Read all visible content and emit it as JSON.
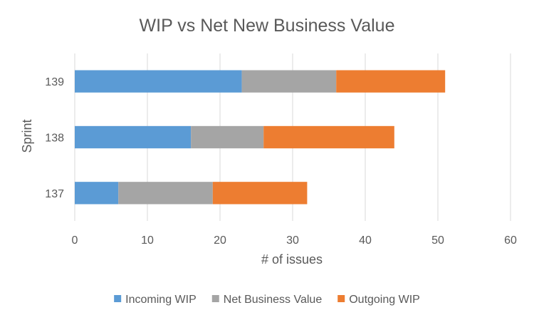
{
  "chart_data": {
    "type": "bar",
    "orientation": "horizontal",
    "stacked": true,
    "title": "WIP vs Net New Business Value",
    "xlabel": "# of issues",
    "ylabel": "Sprint",
    "categories": [
      "137",
      "138",
      "139"
    ],
    "xlim": [
      0,
      60
    ],
    "xticks": [
      "0",
      "10",
      "20",
      "30",
      "40",
      "50",
      "60"
    ],
    "grid": true,
    "legend_position": "bottom",
    "series": [
      {
        "name": "Incoming WIP",
        "color": "#5B9BD5",
        "values": [
          6,
          16,
          23
        ]
      },
      {
        "name": "Net Business Value",
        "color": "#A5A5A5",
        "values": [
          13,
          10,
          13
        ]
      },
      {
        "name": "Outgoing WIP",
        "color": "#ED7D31",
        "values": [
          13,
          18,
          15
        ]
      }
    ]
  }
}
